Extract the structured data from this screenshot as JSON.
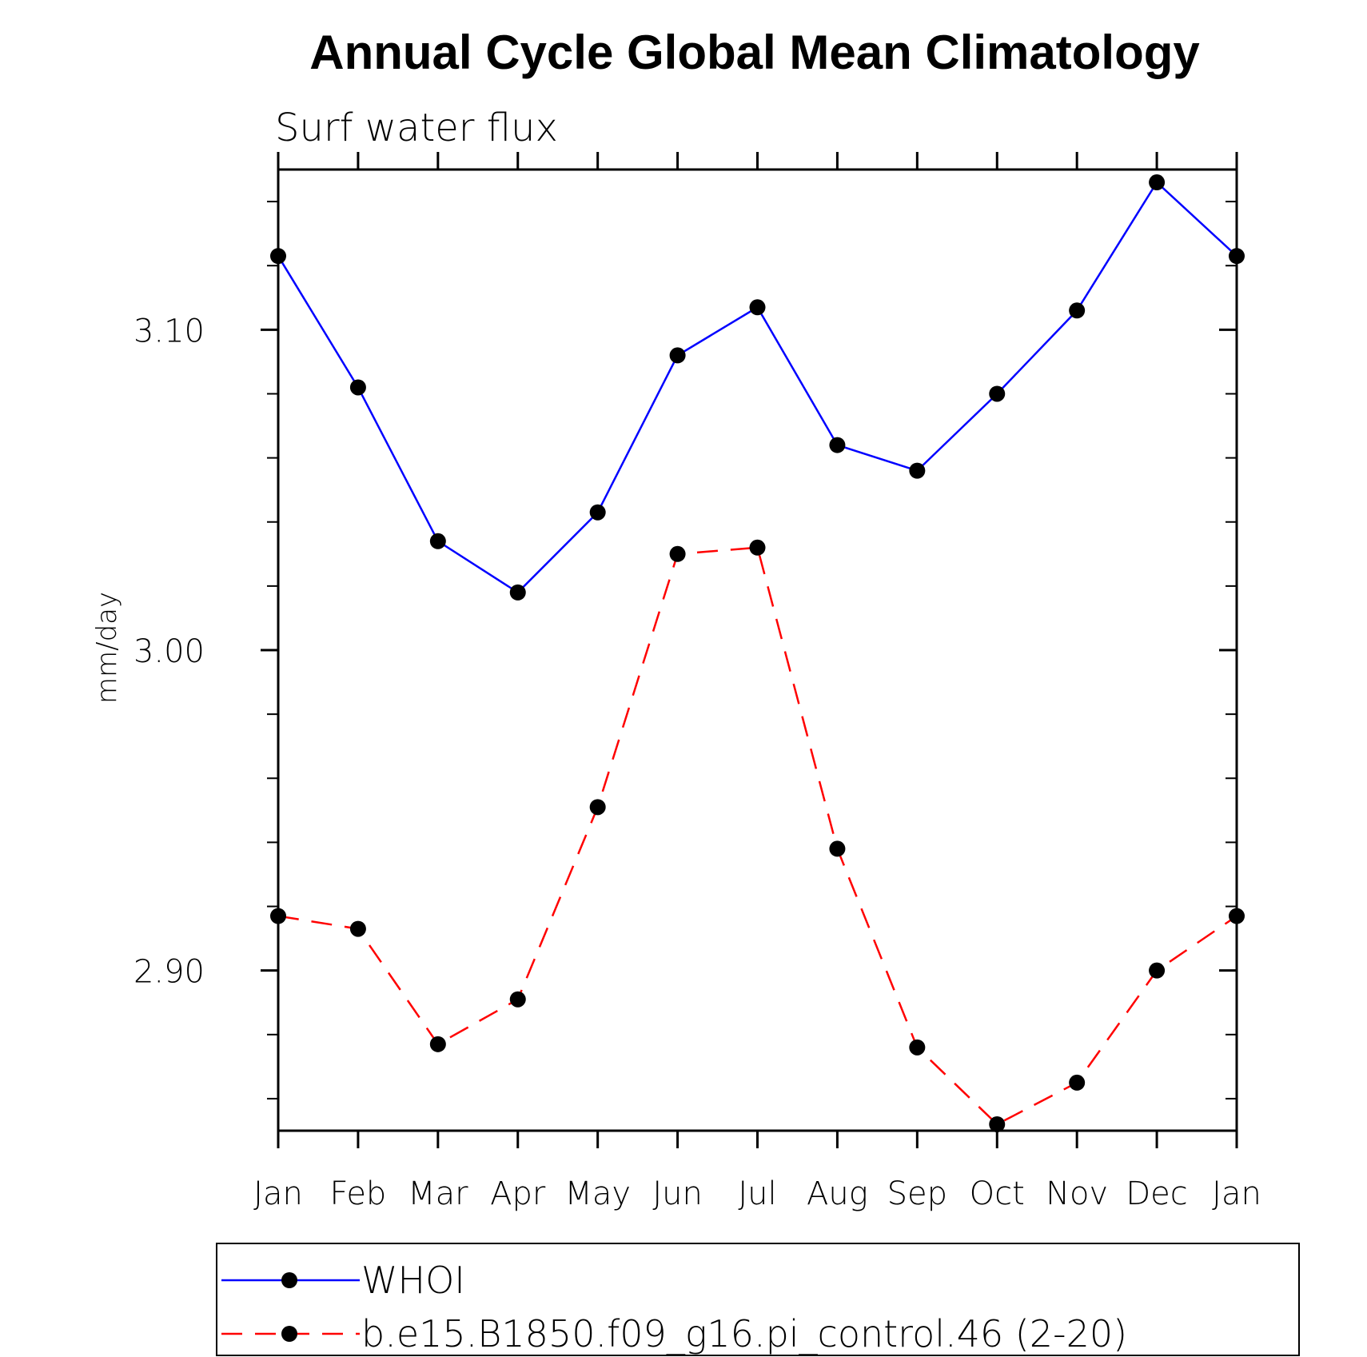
{
  "chart_data": {
    "type": "line",
    "title": "Annual Cycle Global Mean Climatology",
    "subtitle": "Surf water flux",
    "xlabel": "",
    "ylabel": "mm/day",
    "categories": [
      "Jan",
      "Feb",
      "Mar",
      "Apr",
      "May",
      "Jun",
      "Jul",
      "Aug",
      "Sep",
      "Oct",
      "Nov",
      "Dec",
      "Jan"
    ],
    "ylim": [
      2.85,
      3.15
    ],
    "yticks": [
      2.9,
      3.0,
      3.1
    ],
    "ytick_labels": [
      "2.90",
      "3.00",
      "3.10"
    ],
    "grid": false,
    "legend_position": "bottom",
    "series": [
      {
        "name": "WHOI",
        "color": "#0000ff",
        "dash": "solid",
        "marker": "circle",
        "values": [
          3.123,
          3.082,
          3.034,
          3.018,
          3.043,
          3.092,
          3.107,
          3.064,
          3.056,
          3.08,
          3.106,
          3.146,
          3.123
        ]
      },
      {
        "name": "b.e15.B1850.f09_g16.pi_control.46 (2-20)",
        "color": "#ff0000",
        "dash": "dashed",
        "marker": "circle",
        "values": [
          2.917,
          2.913,
          2.877,
          2.891,
          2.951,
          3.03,
          3.032,
          2.938,
          2.876,
          2.852,
          2.865,
          2.9,
          2.917
        ]
      }
    ]
  }
}
